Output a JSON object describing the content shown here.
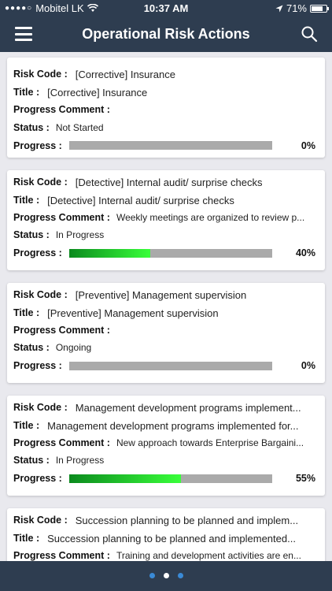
{
  "status_bar": {
    "carrier": "Mobitel LK",
    "time": "10:37 AM",
    "battery": "71%"
  },
  "nav": {
    "title": "Operational Risk Actions",
    "menu_icon": "hamburger-menu-icon",
    "search_icon": "search-icon"
  },
  "labels": {
    "risk_code": "Risk Code :",
    "title": "Title :",
    "progress_comment": "Progress Comment :",
    "status": "Status :",
    "progress": "Progress :"
  },
  "cards": [
    {
      "risk_code": "[Corrective] Insurance",
      "title": "[Corrective] Insurance",
      "progress_comment": "",
      "status": "Not Started",
      "progress_value": 0,
      "progress_text": "0%"
    },
    {
      "risk_code": "[Detective] Internal audit/ surprise checks",
      "title": "[Detective] Internal audit/ surprise checks",
      "progress_comment": "Weekly meetings are organized to review p...",
      "status": "In Progress",
      "progress_value": 40,
      "progress_text": "40%"
    },
    {
      "risk_code": "[Preventive] Management supervision",
      "title": "[Preventive] Management supervision",
      "progress_comment": "",
      "status": "Ongoing",
      "progress_value": 0,
      "progress_text": "0%"
    },
    {
      "risk_code": "Management development programs implement...",
      "title": "Management development programs implemented for...",
      "progress_comment": "New approach towards Enterprise Bargaini...",
      "status": "In Progress",
      "progress_value": 55,
      "progress_text": "55%"
    },
    {
      "risk_code": "Succession planning to be planned and implem...",
      "title": "Succession planning to be planned and implemented...",
      "progress_comment": "Training and development activities are en...",
      "status": "",
      "progress_value": 0,
      "progress_text": ""
    }
  ],
  "pager": {
    "count": 3,
    "active_index": 1,
    "inactive_color": "#3a8ad6",
    "active_color": "#ffffff"
  },
  "colors": {
    "header_bg": "#2e3d50",
    "page_bg": "#e9e9ee",
    "bar_track": "#aaaaaa",
    "bar_fill_start": "#0b8a1e",
    "bar_fill_end": "#39ff3a"
  }
}
